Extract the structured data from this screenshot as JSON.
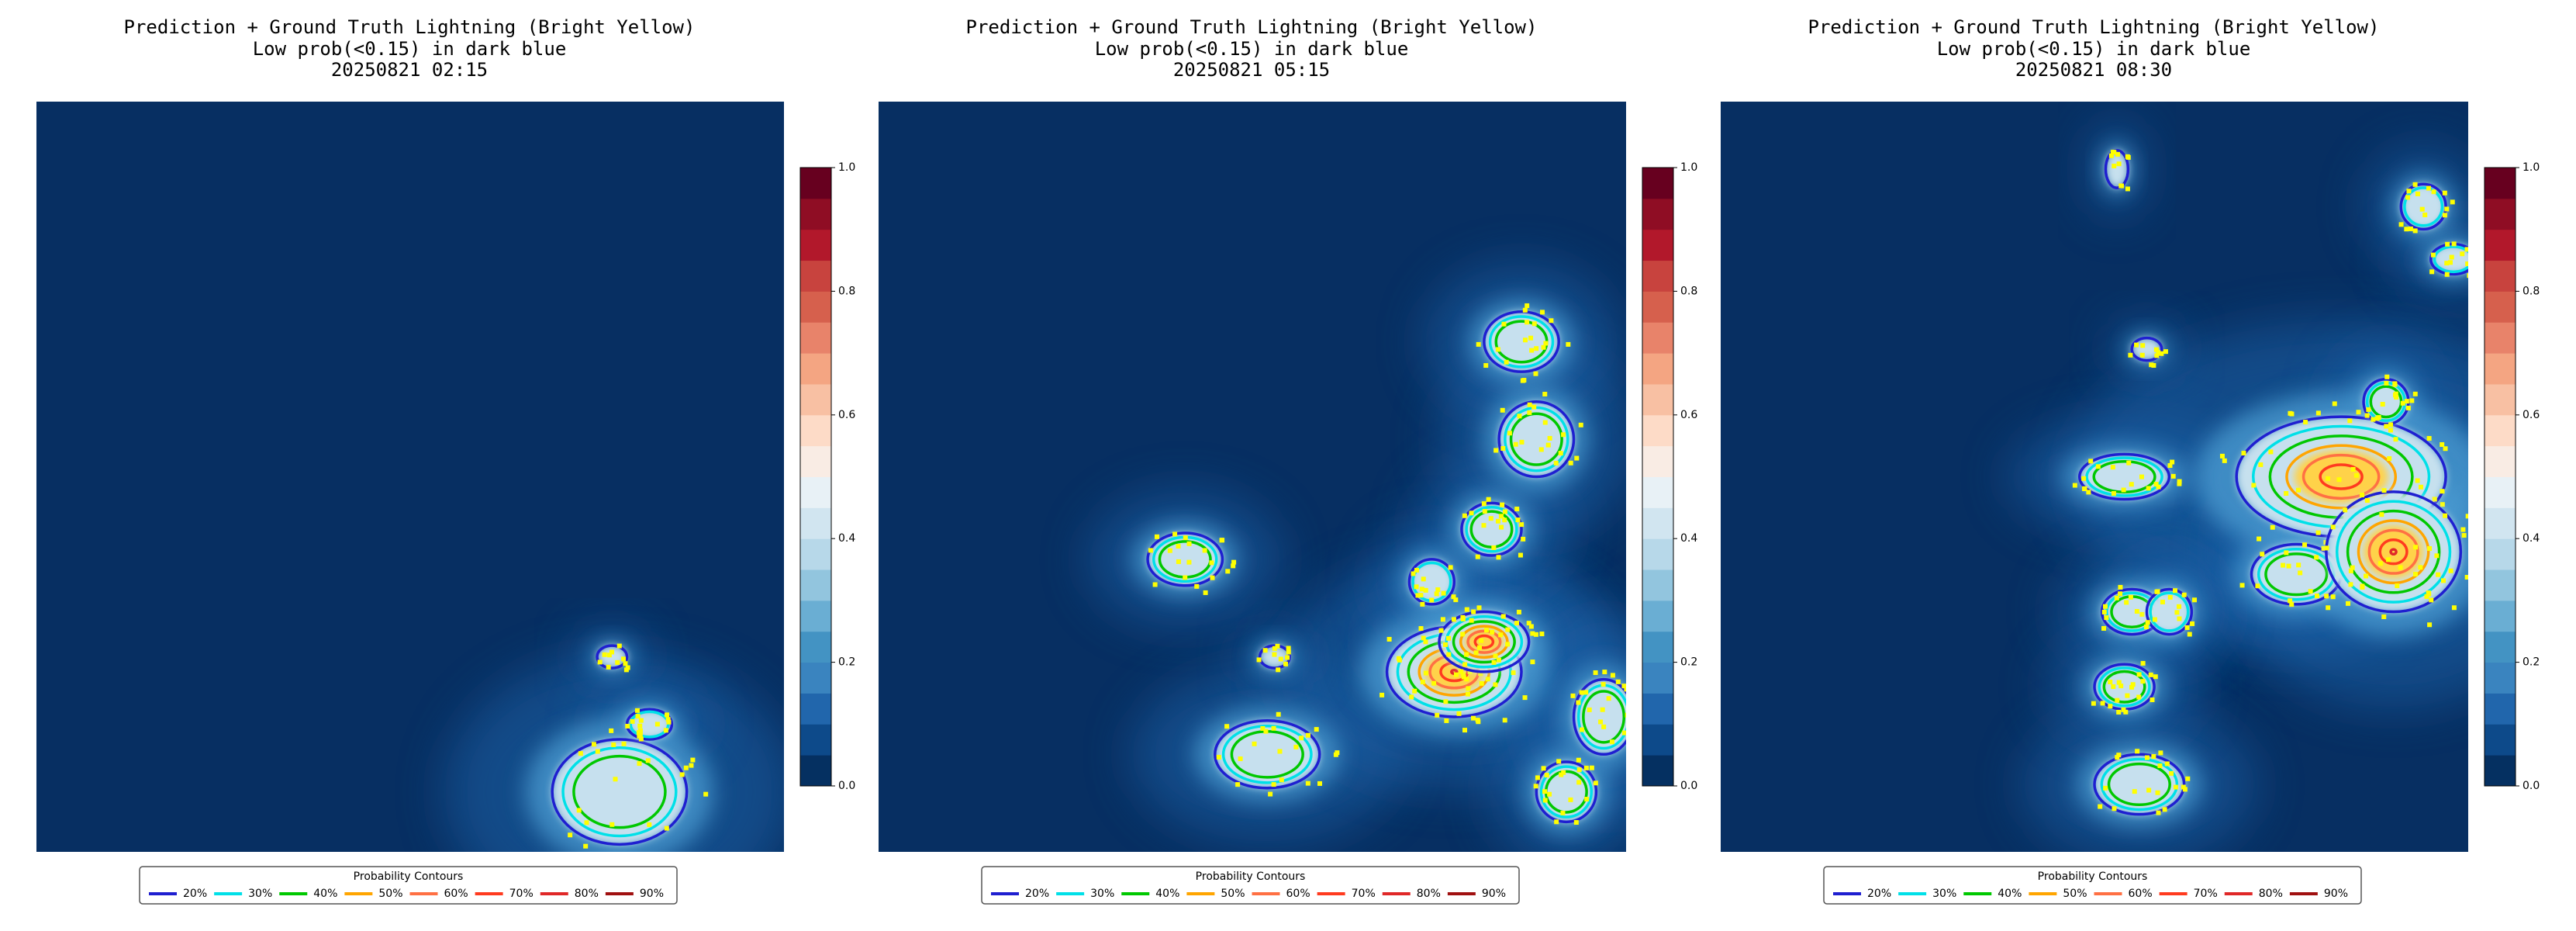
{
  "chart_data": [
    {
      "type": "heatmap",
      "title": "Prediction + Ground Truth Lightning (Bright Yellow)",
      "subtitle": "Low prob(<0.15) in dark blue",
      "date": "20250821 02:15",
      "ylim": [
        0,
        1
      ],
      "yticks": [
        {
          "value": 0,
          "label": "0.0"
        },
        0.2,
        0.4,
        0.6,
        0.8,
        {
          "value": 1,
          "label": "1.0"
        }
      ],
      "legend_title": "Probability Contours",
      "series": [
        {
          "name": "20%",
          "color": "#1f1fd0"
        },
        {
          "name": "30%",
          "color": "#00e0e8"
        },
        {
          "name": "40%",
          "color": "#00c800"
        },
        {
          "name": "50%",
          "color": "#ffa500"
        },
        {
          "name": "60%",
          "color": "#ff7043"
        },
        {
          "name": "70%",
          "color": "#ff3b1f"
        },
        {
          "name": "80%",
          "color": "#e02828"
        },
        {
          "name": "90%",
          "color": "#a01010"
        }
      ]
    },
    {
      "type": "heatmap",
      "title": "Prediction + Ground Truth Lightning (Bright Yellow)",
      "subtitle": "Low prob(<0.15) in dark blue",
      "date": "20250821 05:15",
      "ylim": [
        0,
        1
      ],
      "yticks": [
        {
          "value": 0,
          "label": "0.0"
        },
        0.2,
        0.4,
        0.6,
        0.8,
        {
          "value": 1,
          "label": "1.0"
        }
      ],
      "legend_title": "Probability Contours",
      "series": [
        {
          "name": "20%",
          "color": "#1f1fd0"
        },
        {
          "name": "30%",
          "color": "#00e0e8"
        },
        {
          "name": "40%",
          "color": "#00c800"
        },
        {
          "name": "50%",
          "color": "#ffa500"
        },
        {
          "name": "60%",
          "color": "#ff7043"
        },
        {
          "name": "70%",
          "color": "#ff3b1f"
        },
        {
          "name": "80%",
          "color": "#e02828"
        },
        {
          "name": "90%",
          "color": "#a01010"
        }
      ]
    },
    {
      "type": "heatmap",
      "title": "Prediction + Ground Truth Lightning (Bright Yellow)",
      "subtitle": "Low prob(<0.15) in dark blue",
      "date": "20250821 08:30",
      "ylim": [
        0,
        1
      ],
      "yticks": [
        {
          "value": 0,
          "label": "0.0"
        },
        0.2,
        0.4,
        0.6,
        0.8,
        {
          "value": 1,
          "label": "1.0"
        }
      ],
      "legend_title": "Probability Contours",
      "series": [
        {
          "name": "20%",
          "color": "#1f1fd0"
        },
        {
          "name": "30%",
          "color": "#00e0e8"
        },
        {
          "name": "40%",
          "color": "#00c800"
        },
        {
          "name": "50%",
          "color": "#ffa500"
        },
        {
          "name": "60%",
          "color": "#ff7043"
        },
        {
          "name": "70%",
          "color": "#ff3b1f"
        },
        {
          "name": "80%",
          "color": "#e02828"
        },
        {
          "name": "90%",
          "color": "#a01010"
        }
      ]
    }
  ]
}
